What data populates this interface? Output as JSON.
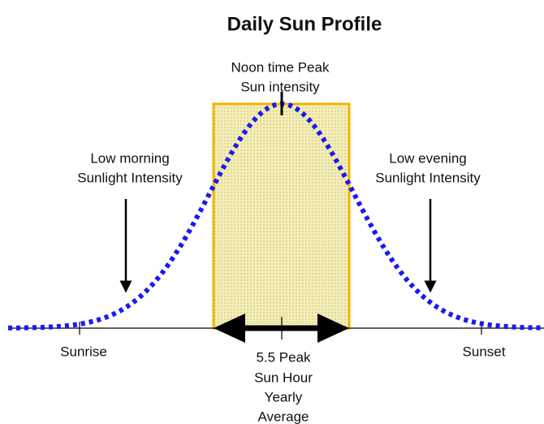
{
  "title": "Daily Sun Profile",
  "labels": {
    "noon": [
      "Noon time Peak",
      "Sun intensity"
    ],
    "morning": [
      "Low morning",
      "Sunlight Intensity"
    ],
    "evening": [
      "Low evening",
      "Sunlight Intensity"
    ],
    "sunrise": "Sunrise",
    "sunset": "Sunset",
    "peak_hours": [
      "5.5 Peak",
      "Sun Hour",
      "Yearly",
      "Average"
    ]
  }
}
